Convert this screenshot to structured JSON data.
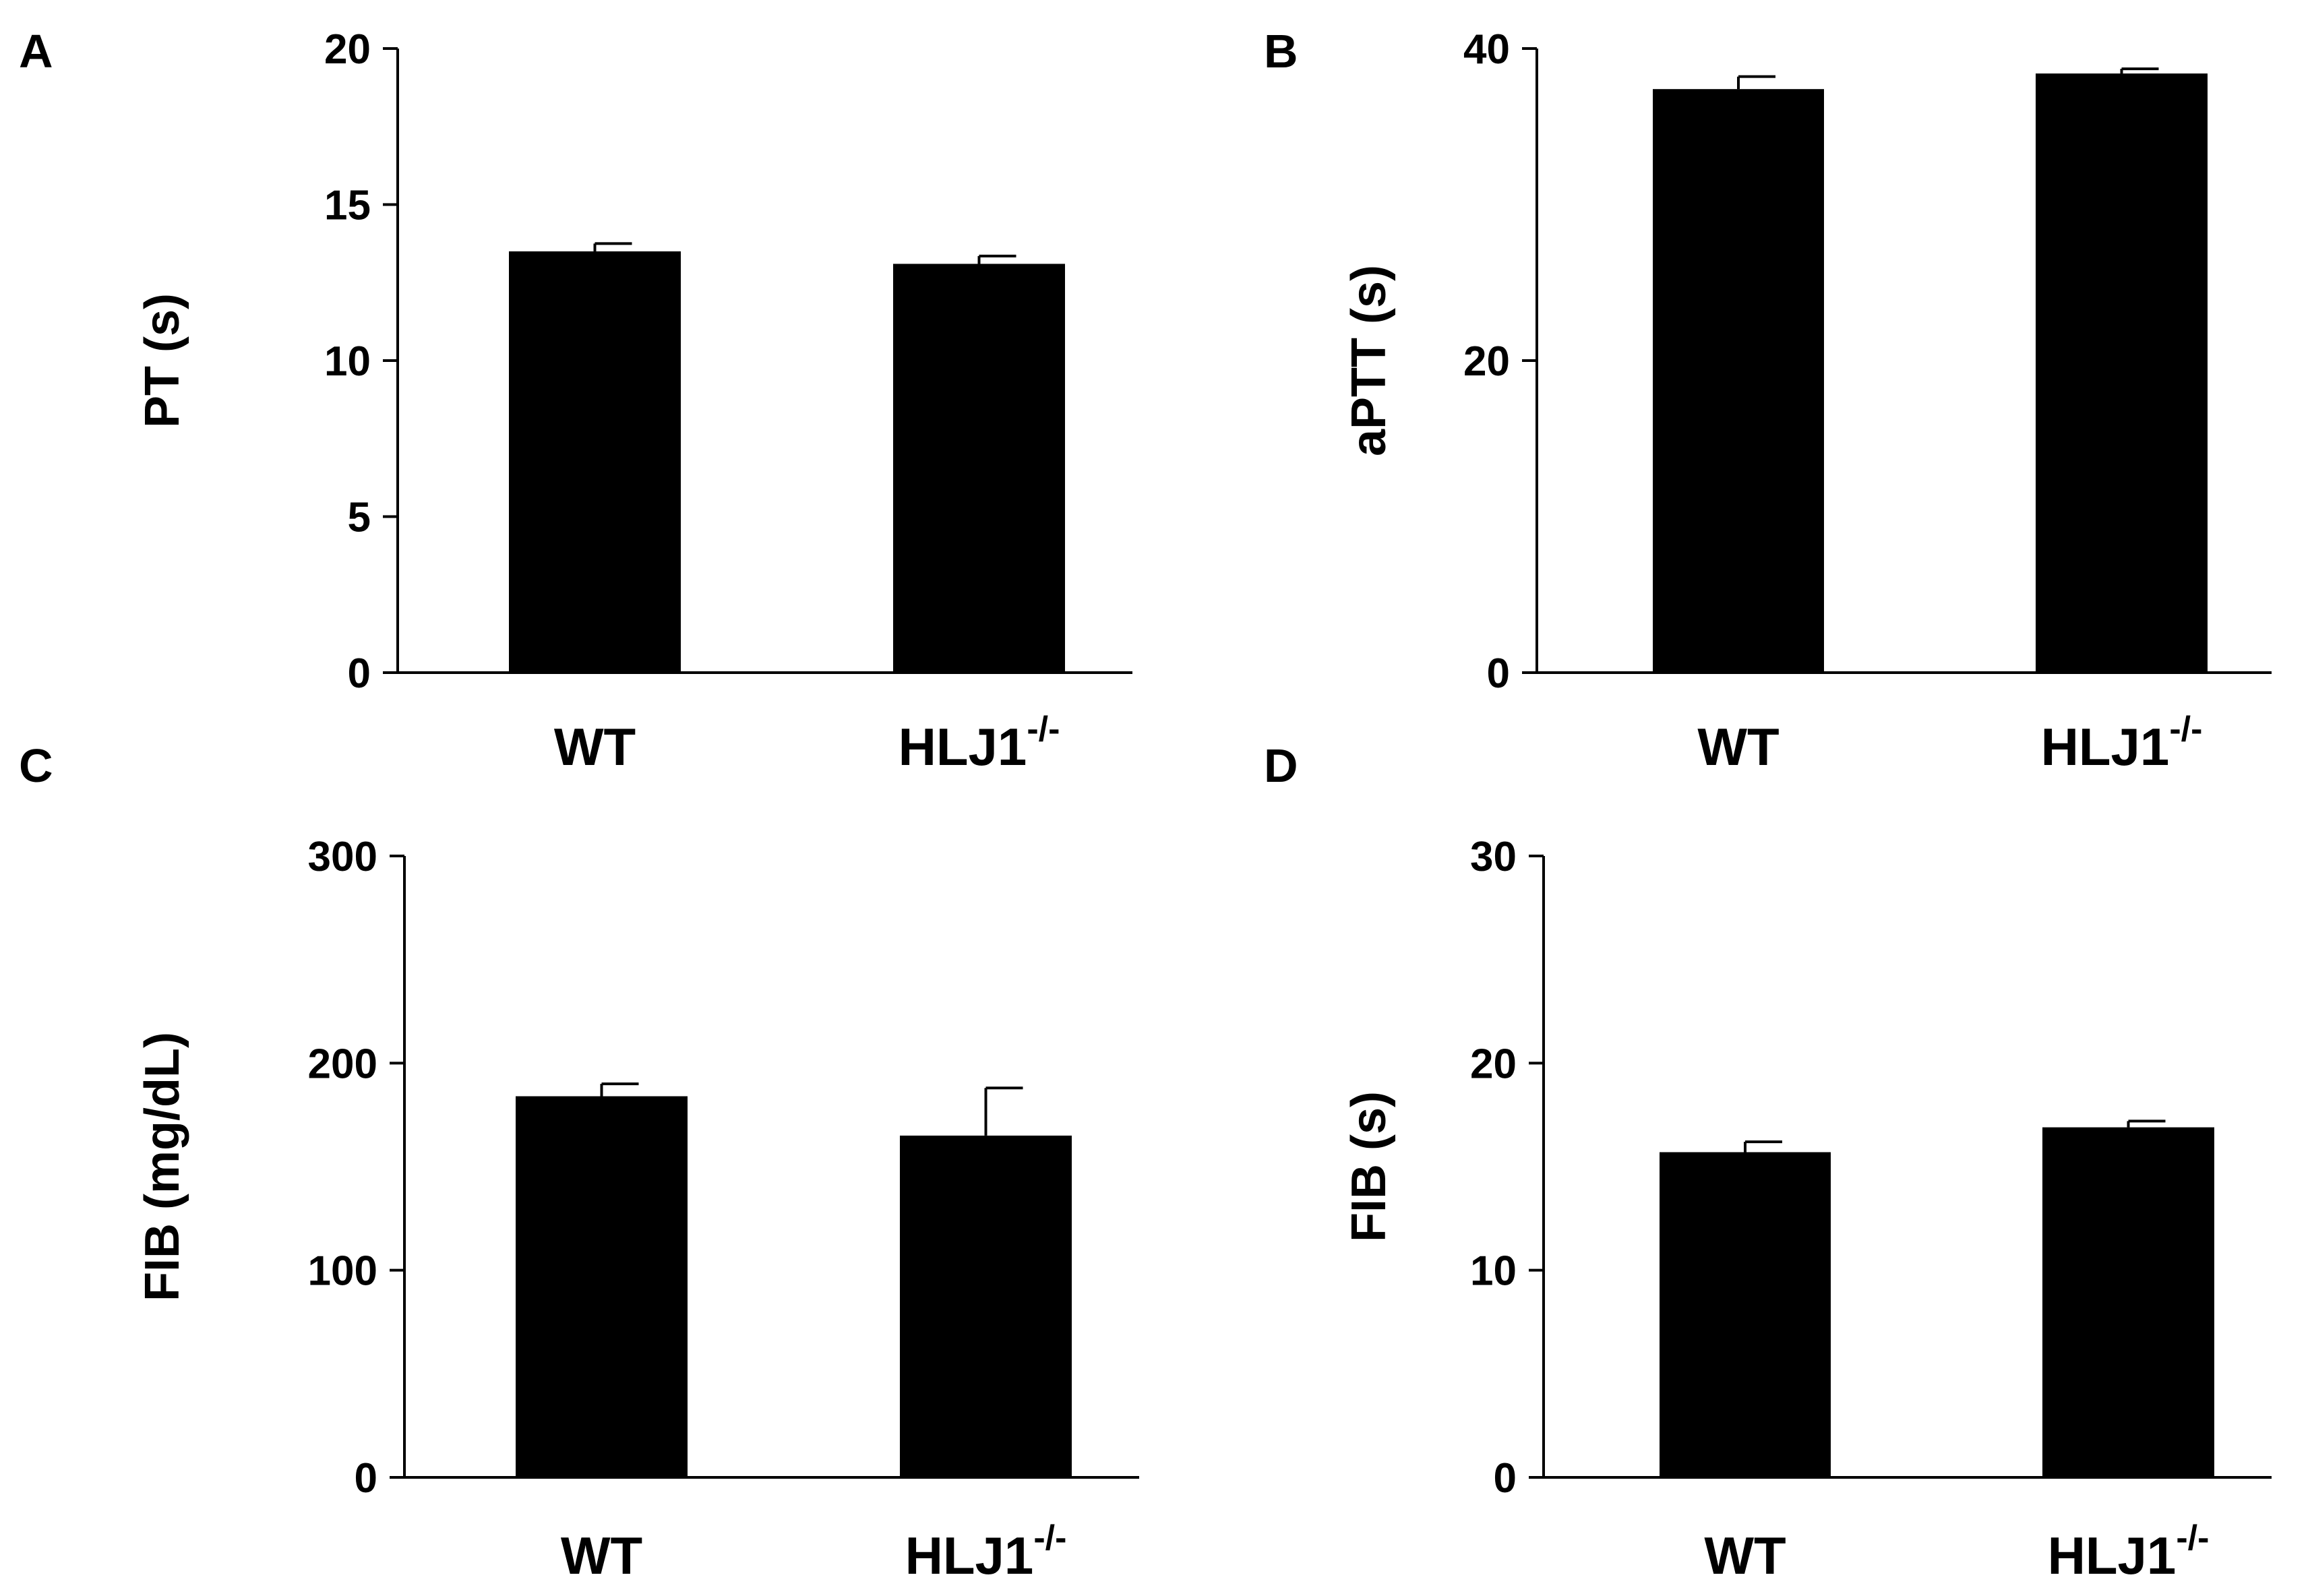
{
  "figure": {
    "type": "bar_grid"
  },
  "chart_data": [
    {
      "panel": "A",
      "type": "bar",
      "ylabel": "PT (s)",
      "categories": [
        "WT",
        "HLJ1"
      ],
      "category_superscripts": [
        "",
        "-/-"
      ],
      "values": [
        13.5,
        13.1
      ],
      "errors": [
        0.25,
        0.25
      ],
      "ylim": [
        0,
        20
      ],
      "yticks": [
        0,
        5,
        10,
        15,
        20
      ]
    },
    {
      "panel": "B",
      "type": "bar",
      "ylabel": "aPTT (s)",
      "categories": [
        "WT",
        "HLJ1"
      ],
      "category_superscripts": [
        "",
        "-/-"
      ],
      "values": [
        37.4,
        38.4
      ],
      "errors": [
        0.8,
        0.3
      ],
      "ylim": [
        0,
        40
      ],
      "yticks": [
        0,
        20,
        40
      ]
    },
    {
      "panel": "C",
      "type": "bar",
      "ylabel": "FIB (mg/dL)",
      "categories": [
        "WT",
        "HLJ1"
      ],
      "category_superscripts": [
        "",
        "-/-"
      ],
      "values": [
        184,
        165
      ],
      "errors": [
        6,
        23
      ],
      "ylim": [
        0,
        300
      ],
      "yticks": [
        0,
        100,
        200,
        300
      ]
    },
    {
      "panel": "D",
      "type": "bar",
      "ylabel": "FIB (s)",
      "categories": [
        "WT",
        "HLJ1"
      ],
      "category_superscripts": [
        "",
        "-/-"
      ],
      "values": [
        15.7,
        16.9
      ],
      "errors": [
        0.5,
        0.3
      ],
      "ylim": [
        0,
        30
      ],
      "yticks": [
        0,
        10,
        20,
        30
      ]
    }
  ]
}
